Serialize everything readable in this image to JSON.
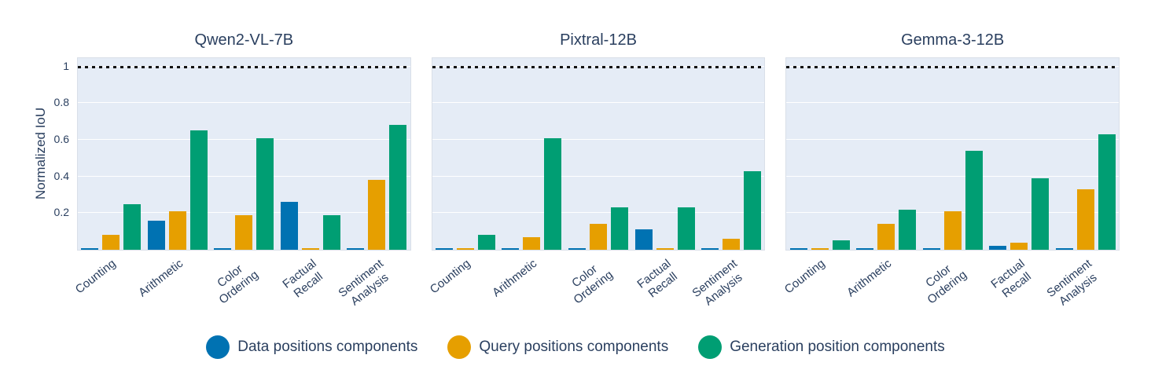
{
  "figure": {
    "plot_background": "#E5ECF6",
    "grid_color": "#ffffff",
    "text_color": "#2a3f5f",
    "reference_line_color": "#121212"
  },
  "chart_data": {
    "type": "bar",
    "categories": [
      "Counting",
      "Arithmetic",
      "Color\nOrdering",
      "Factual\nRecall",
      "Sentiment\nAnalysis"
    ],
    "ylabel": "Normalized IoU",
    "ylim": [
      0,
      1.04
    ],
    "grid": true,
    "legend_position": "bottom-center",
    "yticks": [
      {
        "value": 0.2,
        "label": "0.2"
      },
      {
        "value": 0.4,
        "label": "0.4"
      },
      {
        "value": 0.6,
        "label": "0.6"
      },
      {
        "value": 0.8,
        "label": "0.8"
      },
      {
        "value": 1,
        "label": "1"
      }
    ],
    "reference_line": {
      "value": 1.0,
      "style": "dotted"
    },
    "legend": [
      {
        "label": "Data positions components",
        "color": "#0072B2"
      },
      {
        "label": "Query positions components",
        "color": "#E69F00"
      },
      {
        "label": "Generation position components",
        "color": "#009E73"
      }
    ],
    "subplots": [
      {
        "title": "Qwen2-VL-7B",
        "series": [
          {
            "name": "Data positions components",
            "values": [
              0.01,
              0.16,
              0.01,
              0.26,
              0.01
            ]
          },
          {
            "name": "Query positions components",
            "values": [
              0.08,
              0.21,
              0.19,
              0.01,
              0.38
            ]
          },
          {
            "name": "Generation position components",
            "values": [
              0.25,
              0.65,
              0.61,
              0.19,
              0.68
            ]
          }
        ]
      },
      {
        "title": "Pixtral-12B",
        "series": [
          {
            "name": "Data positions components",
            "values": [
              0.01,
              0.01,
              0.01,
              0.11,
              0.01
            ]
          },
          {
            "name": "Query positions components",
            "values": [
              0.01,
              0.07,
              0.14,
              0.01,
              0.06
            ]
          },
          {
            "name": "Generation position components",
            "values": [
              0.08,
              0.61,
              0.23,
              0.23,
              0.43
            ]
          }
        ]
      },
      {
        "title": "Gemma-3-12B",
        "series": [
          {
            "name": "Data positions components",
            "values": [
              0.01,
              0.01,
              0.01,
              0.02,
              0.01
            ]
          },
          {
            "name": "Query positions components",
            "values": [
              0.01,
              0.14,
              0.21,
              0.04,
              0.33
            ]
          },
          {
            "name": "Generation position components",
            "values": [
              0.05,
              0.22,
              0.54,
              0.39,
              0.63
            ]
          }
        ]
      }
    ]
  }
}
